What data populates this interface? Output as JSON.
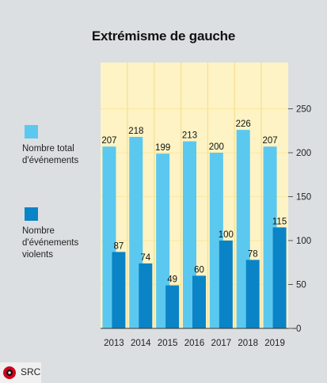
{
  "chart_data": {
    "type": "bar",
    "title": "Extrémisme de gauche",
    "categories": [
      "2013",
      "2014",
      "2015",
      "2016",
      "2017",
      "2018",
      "2019"
    ],
    "series": [
      {
        "name": "Nombre total d'événements",
        "values": [
          207,
          218,
          199,
          213,
          200,
          226,
          207
        ],
        "color": "#5bc8ef"
      },
      {
        "name": "Nombre d'événements violents",
        "values": [
          87,
          74,
          49,
          60,
          100,
          78,
          115
        ],
        "color": "#0a84c6"
      }
    ],
    "ylim": [
      0,
      250
    ],
    "yticks": [
      "0",
      "50",
      "100",
      "150",
      "200",
      "250"
    ],
    "grid": true,
    "legend_position": "left",
    "plot_background": "#fdf3c4",
    "grid_color": "#fbe7a0"
  },
  "legend": [
    {
      "label": "Nombre total\nd'événements",
      "color": "#5bc8ef"
    },
    {
      "label": "Nombre\nd'événements\nviolents",
      "color": "#0a84c6"
    }
  ],
  "source": {
    "label": "SRC"
  }
}
